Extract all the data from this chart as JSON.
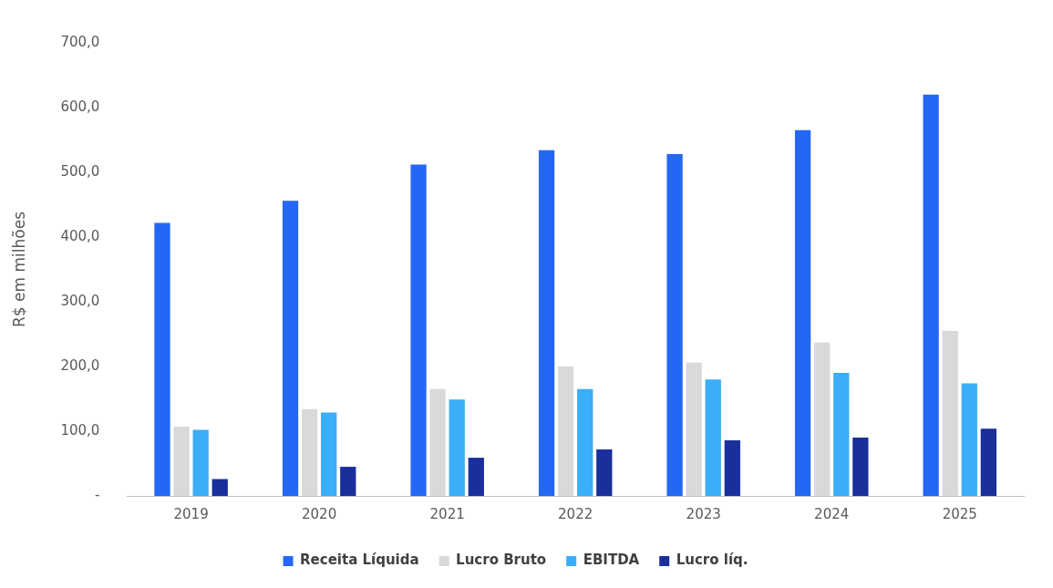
{
  "chart_data": {
    "type": "bar",
    "ylabel": "R$ em milhões",
    "categories": [
      "2019",
      "2020",
      "2021",
      "2022",
      "2023",
      "2024",
      "2025"
    ],
    "series": [
      {
        "name": "Receita Líquida",
        "color": "#2567f5",
        "values": [
          422,
          456,
          512,
          534,
          528,
          565,
          620
        ]
      },
      {
        "name": "Lucro Bruto",
        "color": "#d9d9d9",
        "values": [
          107,
          134,
          165,
          200,
          206,
          237,
          255
        ]
      },
      {
        "name": "EBITDA",
        "color": "#3aaef8",
        "values": [
          102,
          129,
          149,
          165,
          180,
          190,
          174
        ]
      },
      {
        "name": "Lucro líq.",
        "color": "#1a2e9c",
        "values": [
          26,
          45,
          59,
          72,
          86,
          90,
          104
        ]
      }
    ],
    "ylim": [
      0,
      700
    ],
    "yticks": [
      {
        "value": 0,
        "label": "-"
      },
      {
        "value": 100,
        "label": "100,0"
      },
      {
        "value": 200,
        "label": "200,0"
      },
      {
        "value": 300,
        "label": "300,0"
      },
      {
        "value": 400,
        "label": "400,0"
      },
      {
        "value": 500,
        "label": "500,0"
      },
      {
        "value": 600,
        "label": "600,0"
      },
      {
        "value": 700,
        "label": "700,0"
      }
    ],
    "grid": false,
    "legend": "bottom"
  }
}
